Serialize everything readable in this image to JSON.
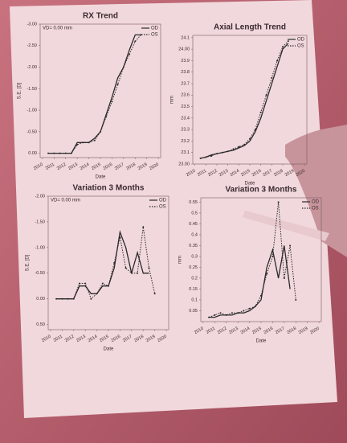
{
  "chart_data": [
    {
      "type": "line",
      "title": "RX Trend",
      "x_label": "Date",
      "y_label": "S.E. [D]",
      "annotation": "VD= 0.00 mm",
      "x": [
        2010.5,
        2011,
        2011.5,
        2012,
        2012.5,
        2013,
        2013.5,
        2014,
        2014.5,
        2015,
        2015.5,
        2016,
        2016.5,
        2017,
        2017.5,
        2018,
        2018.5
      ],
      "series": [
        {
          "name": "OD",
          "color": "#2a2a2a",
          "style": "solid",
          "values": [
            0,
            0,
            0,
            0,
            0,
            -0.25,
            -0.25,
            -0.25,
            -0.35,
            -0.5,
            -0.9,
            -1.3,
            -1.75,
            -2.0,
            -2.4,
            -2.75,
            -2.75
          ]
        },
        {
          "name": "OS",
          "color": "#2a2a2a",
          "style": "dotted",
          "values": [
            0,
            0,
            0,
            0,
            0,
            -0.2,
            -0.25,
            -0.25,
            -0.3,
            -0.5,
            -0.85,
            -1.2,
            -1.6,
            -2.0,
            -2.3,
            -2.6,
            -2.75
          ]
        }
      ],
      "xlim": [
        2009.8,
        2020.2
      ],
      "xticks": [
        2010,
        2011,
        2012,
        2013,
        2014,
        2015,
        2016,
        2017,
        2018,
        2019,
        2020
      ],
      "ylim": [
        0.1,
        -3.0
      ],
      "yticks": [
        {
          "value": -3,
          "label": "-3.00"
        },
        {
          "value": -2.5,
          "label": "-2.50"
        },
        {
          "value": -2,
          "label": "-2.00"
        },
        {
          "value": -1.5,
          "label": "-1.50"
        },
        {
          "value": -1,
          "label": "-1.00"
        },
        {
          "value": -0.5,
          "label": "-0.50"
        },
        {
          "value": 0,
          "label": "0.00"
        }
      ],
      "legend": "top-right"
    },
    {
      "type": "line",
      "title": "Axial Length Trend",
      "x_label": "Date",
      "y_label": "mm",
      "x": [
        2010.5,
        2011,
        2011.5,
        2012,
        2012.5,
        2013,
        2013.5,
        2014,
        2014.5,
        2015,
        2015.5,
        2016,
        2016.5,
        2017,
        2017.5,
        2018,
        2018.5
      ],
      "series": [
        {
          "name": "OD",
          "color": "#2a2a2a",
          "style": "solid",
          "values": [
            23.05,
            23.06,
            23.08,
            23.09,
            23.1,
            23.11,
            23.12,
            23.14,
            23.16,
            23.2,
            23.28,
            23.4,
            23.55,
            23.7,
            23.85,
            24.0,
            24.05
          ]
        },
        {
          "name": "OS",
          "color": "#2a2a2a",
          "style": "dotted",
          "values": [
            23.05,
            23.06,
            23.07,
            23.09,
            23.1,
            23.11,
            23.13,
            23.15,
            23.17,
            23.22,
            23.3,
            23.45,
            23.6,
            23.75,
            23.9,
            24.02,
            24.07
          ]
        }
      ],
      "xlim": [
        2009.8,
        2020.2
      ],
      "xticks": [
        2010,
        2011,
        2012,
        2013,
        2014,
        2015,
        2016,
        2017,
        2018,
        2019,
        2020
      ],
      "ylim": [
        23.0,
        24.12
      ],
      "yticks": [
        {
          "value": 23,
          "label": "23.00"
        },
        23.1,
        23.2,
        23.3,
        23.4,
        23.5,
        23.6,
        23.7,
        23.8,
        23.9,
        {
          "value": 24,
          "label": "24.00"
        },
        24.1
      ],
      "legend": "top-right"
    },
    {
      "type": "line",
      "title": "Variation 3 Months",
      "x_label": "Date",
      "y_label": "S.E. [D]",
      "annotation": "VD= 0.00 mm",
      "x": [
        2010.5,
        2011,
        2011.5,
        2012,
        2012.5,
        2013,
        2013.5,
        2014,
        2014.5,
        2015,
        2015.5,
        2016,
        2016.5,
        2017,
        2017.5,
        2018,
        2018.5,
        2019
      ],
      "series": [
        {
          "name": "OD",
          "color": "#2a2a2a",
          "style": "solid",
          "values": [
            0,
            0,
            0,
            0,
            -0.25,
            -0.25,
            -0.1,
            -0.1,
            -0.25,
            -0.25,
            -0.6,
            -1.3,
            -1.0,
            -0.5,
            -0.9,
            -0.5,
            -0.5,
            null
          ]
        },
        {
          "name": "OS",
          "color": "#2a2a2a",
          "style": "dotted",
          "values": [
            0,
            0,
            0,
            0,
            -0.3,
            -0.3,
            0,
            -0.1,
            -0.3,
            -0.25,
            -0.7,
            -1.2,
            -0.6,
            -0.5,
            -0.5,
            -1.4,
            -0.6,
            -0.1
          ]
        }
      ],
      "xlim": [
        2009.8,
        2020.2
      ],
      "xticks": [
        2010,
        2011,
        2012,
        2013,
        2014,
        2015,
        2016,
        2017,
        2018,
        2019,
        2020
      ],
      "ylim": [
        0.6,
        -2.0
      ],
      "yticks": [
        {
          "value": -2,
          "label": "-2.00"
        },
        {
          "value": -1.5,
          "label": "-1.50"
        },
        {
          "value": -1,
          "label": "-1.00"
        },
        {
          "value": -0.5,
          "label": "-0.50"
        },
        {
          "value": 0,
          "label": "0.00"
        },
        {
          "value": 0.5,
          "label": "0.50"
        }
      ],
      "legend": "top-right"
    },
    {
      "type": "line",
      "title": "Variation 3 Months",
      "x_label": "Date",
      "y_label": "mm",
      "x": [
        2010.5,
        2011,
        2011.5,
        2012,
        2012.5,
        2013,
        2013.5,
        2014,
        2014.5,
        2015,
        2015.5,
        2016,
        2016.5,
        2017,
        2017.5,
        2018,
        2018.5,
        2019
      ],
      "series": [
        {
          "name": "OD",
          "color": "#2a2a2a",
          "style": "solid",
          "values": [
            0.02,
            0.02,
            0.03,
            0.03,
            0.03,
            0.04,
            0.04,
            0.05,
            0.07,
            0.1,
            0.25,
            0.33,
            0.2,
            0.35,
            0.15,
            null,
            null,
            null
          ]
        },
        {
          "name": "OS",
          "color": "#2a2a2a",
          "style": "dotted",
          "values": [
            0.02,
            0.03,
            0.04,
            0.03,
            0.04,
            0.04,
            0.05,
            0.06,
            0.07,
            0.12,
            0.22,
            0.3,
            0.55,
            0.2,
            0.35,
            0.1,
            null,
            null
          ]
        }
      ],
      "xlim": [
        2009.8,
        2020.2
      ],
      "xticks": [
        2010,
        2011,
        2012,
        2013,
        2014,
        2015,
        2016,
        2017,
        2018,
        2019,
        2020
      ],
      "ylim": [
        0,
        0.57
      ],
      "yticks": [
        0.05,
        0.1,
        0.15,
        0.2,
        0.25,
        0.3,
        0.35,
        0.4,
        0.45,
        0.5,
        0.55
      ],
      "legend": "top-right"
    }
  ]
}
